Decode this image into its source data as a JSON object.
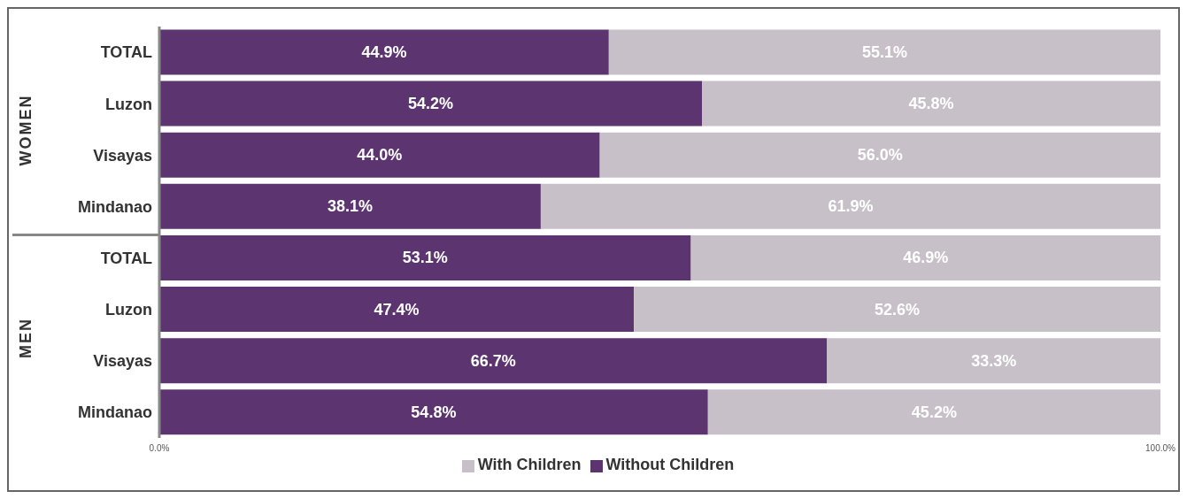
{
  "chart_data": {
    "type": "bar",
    "orientation": "horizontal",
    "stacked": true,
    "categories": [
      "TOTAL",
      "Luzon",
      "Visayas",
      "Mindanao",
      "TOTAL",
      "Luzon",
      "Visayas",
      "Mindanao"
    ],
    "series": [
      {
        "name": "Without Children",
        "color": "#5c3470",
        "values": [
          44.9,
          54.2,
          44.0,
          38.1,
          53.1,
          47.4,
          66.7,
          54.8
        ],
        "value_labels": [
          "44.9%",
          "54.2%",
          "44.0%",
          "38.1%",
          "53.1%",
          "47.4%",
          "66.7%",
          "54.8%"
        ]
      },
      {
        "name": "With Children",
        "color": "#c8c0c8",
        "values": [
          55.1,
          45.8,
          56.0,
          61.9,
          46.9,
          52.6,
          33.3,
          45.2
        ],
        "value_labels": [
          "55.1%",
          "45.8%",
          "56.0%",
          "61.9%",
          "46.9%",
          "52.6%",
          "33.3%",
          "45.2%"
        ]
      }
    ],
    "xlim": [
      0,
      100
    ],
    "xticks": [
      {
        "value": 0,
        "label": "0.0%"
      },
      {
        "value": 100,
        "label": "100.0%"
      }
    ],
    "annotations": [
      "WOMEN",
      "MEN"
    ],
    "grid": false,
    "legend": "bottom"
  }
}
